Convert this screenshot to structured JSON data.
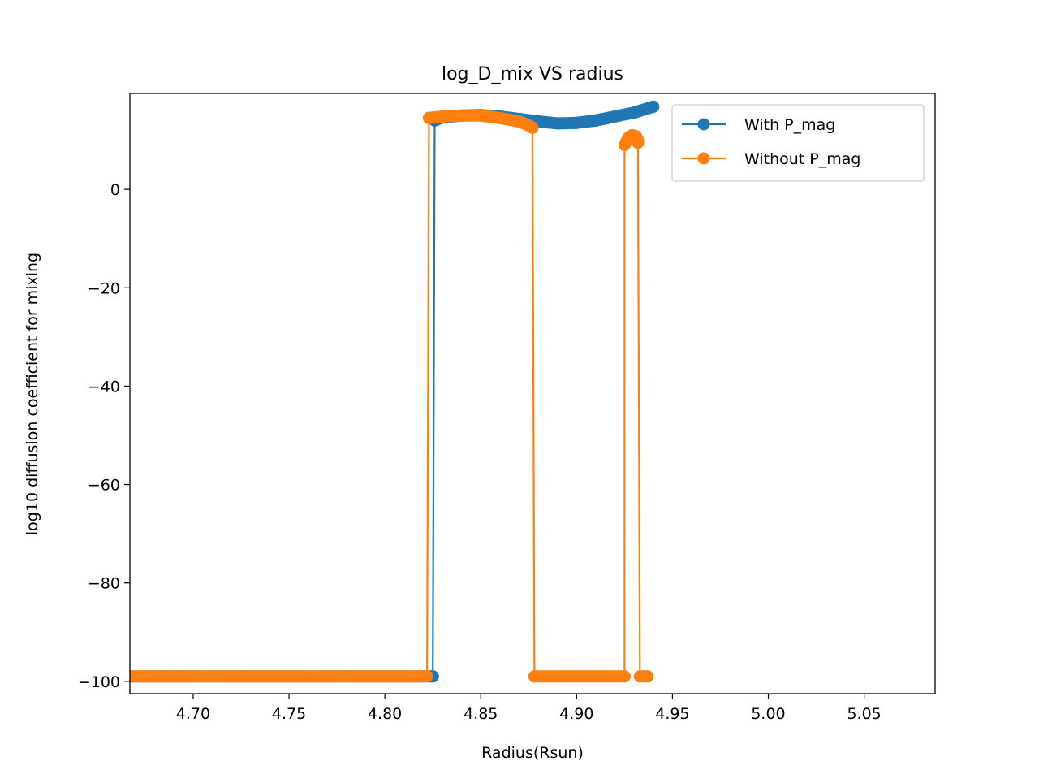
{
  "chart_data": {
    "type": "line",
    "title": "log_D_mix VS radius",
    "xlabel": "Radius(Rsun)",
    "ylabel": "log10 diffusion coefficient for mixing",
    "xlim": [
      4.667,
      5.087
    ],
    "ylim": [
      -102.5,
      19.5
    ],
    "xticks": [
      4.7,
      4.75,
      4.8,
      4.85,
      4.9,
      4.95,
      5.0,
      5.05
    ],
    "xtick_labels": [
      "4.70",
      "4.75",
      "4.80",
      "4.85",
      "4.90",
      "4.95",
      "5.00",
      "5.05"
    ],
    "yticks": [
      0,
      -20,
      -40,
      -60,
      -80,
      -100
    ],
    "ytick_labels": [
      "0",
      "−20",
      "−40",
      "−60",
      "−80",
      "−100"
    ],
    "grid": false,
    "legend_position": "top-right",
    "series": [
      {
        "name": "With P_mag",
        "color": "#1f77b4",
        "marker": "circle",
        "segments": [
          {
            "x": [
              4.667,
              4.825
            ],
            "y": [
              -99,
              -99
            ],
            "dense_markers": true
          },
          {
            "x": [
              4.825,
              4.826,
              4.83,
              4.84,
              4.85,
              4.86,
              4.87,
              4.88,
              4.89,
              4.9,
              4.91,
              4.92,
              4.93,
              4.94
            ],
            "y": [
              -99,
              14.0,
              14.6,
              15.0,
              15.1,
              14.8,
              14.3,
              13.8,
              13.4,
              13.5,
              14.0,
              14.8,
              15.6,
              16.8
            ],
            "dense_markers": true
          }
        ]
      },
      {
        "name": "Without P_mag",
        "color": "#ff7f0e",
        "marker": "circle",
        "segments": [
          {
            "x": [
              4.667,
              4.822,
              4.823
            ],
            "y": [
              -99,
              -99,
              14.5
            ],
            "dense_markers": true
          },
          {
            "x": [
              4.823,
              4.83,
              4.84,
              4.85,
              4.86,
              4.87,
              4.875,
              4.877,
              4.878
            ],
            "y": [
              14.5,
              14.8,
              15.0,
              15.0,
              14.5,
              13.8,
              13.0,
              12.5,
              -99
            ],
            "dense_markers": true
          },
          {
            "x": [
              4.878,
              4.9,
              4.925
            ],
            "y": [
              -99,
              -99,
              -99
            ],
            "dense_markers": true
          },
          {
            "x": [
              4.925,
              4.925,
              4.927,
              4.929,
              4.931,
              4.932,
              4.932
            ],
            "y": [
              -99,
              9.0,
              10.5,
              11.0,
              10.8,
              10.0,
              9.5
            ],
            "dense_markers": true
          },
          {
            "x": [
              4.932,
              4.933,
              4.935,
              4.937
            ],
            "y": [
              9.5,
              -99,
              -99,
              -99
            ],
            "dense_markers": true
          }
        ]
      }
    ]
  }
}
